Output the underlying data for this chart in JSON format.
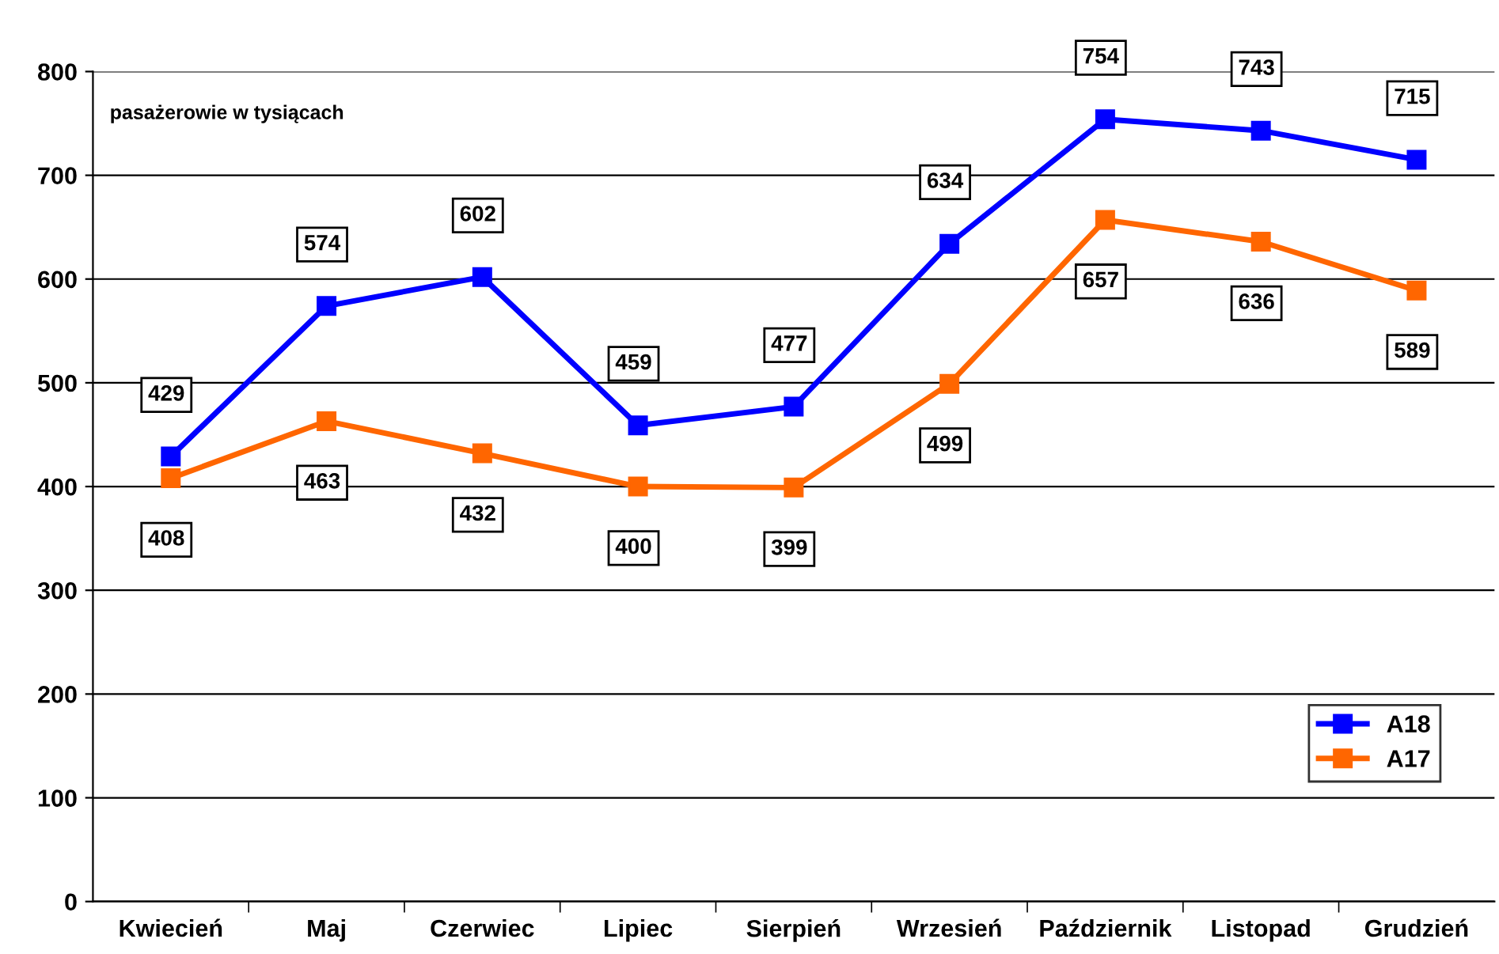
{
  "chart_data": {
    "type": "line",
    "categories": [
      "Kwiecień",
      "Maj",
      "Czerwiec",
      "Lipiec",
      "Sierpień",
      "Wrzesień",
      "Październik",
      "Listopad",
      "Grudzień"
    ],
    "series": [
      {
        "name": "A18",
        "color": "#0000ff",
        "values": [
          429,
          574,
          602,
          459,
          477,
          634,
          754,
          743,
          715
        ]
      },
      {
        "name": "A17",
        "color": "#ff6600",
        "values": [
          408,
          463,
          432,
          400,
          399,
          499,
          657,
          636,
          589
        ]
      }
    ],
    "ylim": [
      0,
      800
    ],
    "yticks": [
      0,
      100,
      200,
      300,
      400,
      500,
      600,
      700,
      800
    ],
    "grid": "y",
    "legend": "bottom right",
    "marker": "square",
    "line_style": "solid",
    "data_labels": true,
    "annotations": [
      "pasażerowie w tysiącach"
    ]
  }
}
